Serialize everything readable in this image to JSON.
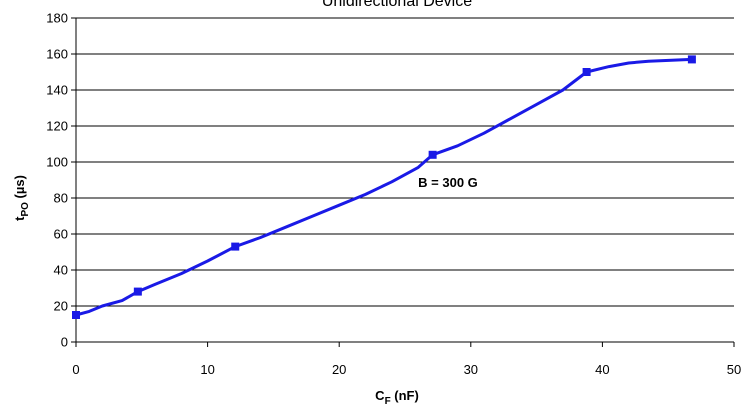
{
  "chart_data": {
    "type": "line",
    "title": "Unidirectional Device",
    "xlabel": {
      "main": "C",
      "sub": "F",
      "rest": " (nF)"
    },
    "ylabel": {
      "main": "t",
      "sub": "PO",
      "rest": " (µs)"
    },
    "xlim": [
      0,
      50
    ],
    "ylim": [
      0,
      180
    ],
    "xticks": [
      0,
      10,
      20,
      30,
      40,
      50
    ],
    "yticks": [
      0,
      20,
      40,
      60,
      80,
      100,
      120,
      140,
      160,
      180
    ],
    "grid": "horizontal",
    "annotation": {
      "text": "B = 300 G",
      "x": 26,
      "y": 86
    },
    "series": [
      {
        "color": "#1a1ae6",
        "curve_x": [
          0,
          1,
          2,
          3.5,
          4.7,
          6,
          8,
          10,
          12.1,
          14,
          16,
          18,
          20,
          22,
          24,
          26,
          27.1,
          29,
          31,
          33,
          35,
          37,
          38.8,
          40.5,
          42,
          43.5,
          46.8
        ],
        "curve_y": [
          15,
          17,
          20,
          23,
          28,
          32,
          38,
          45,
          53,
          58,
          64,
          70,
          76,
          82,
          89,
          97,
          104,
          109,
          116,
          124,
          132,
          140,
          150,
          153,
          155,
          156,
          157
        ],
        "marker_x": [
          0,
          4.7,
          12.1,
          27.1,
          38.8,
          46.8
        ],
        "marker_y": [
          15,
          28,
          53,
          104,
          150,
          157
        ]
      }
    ]
  }
}
